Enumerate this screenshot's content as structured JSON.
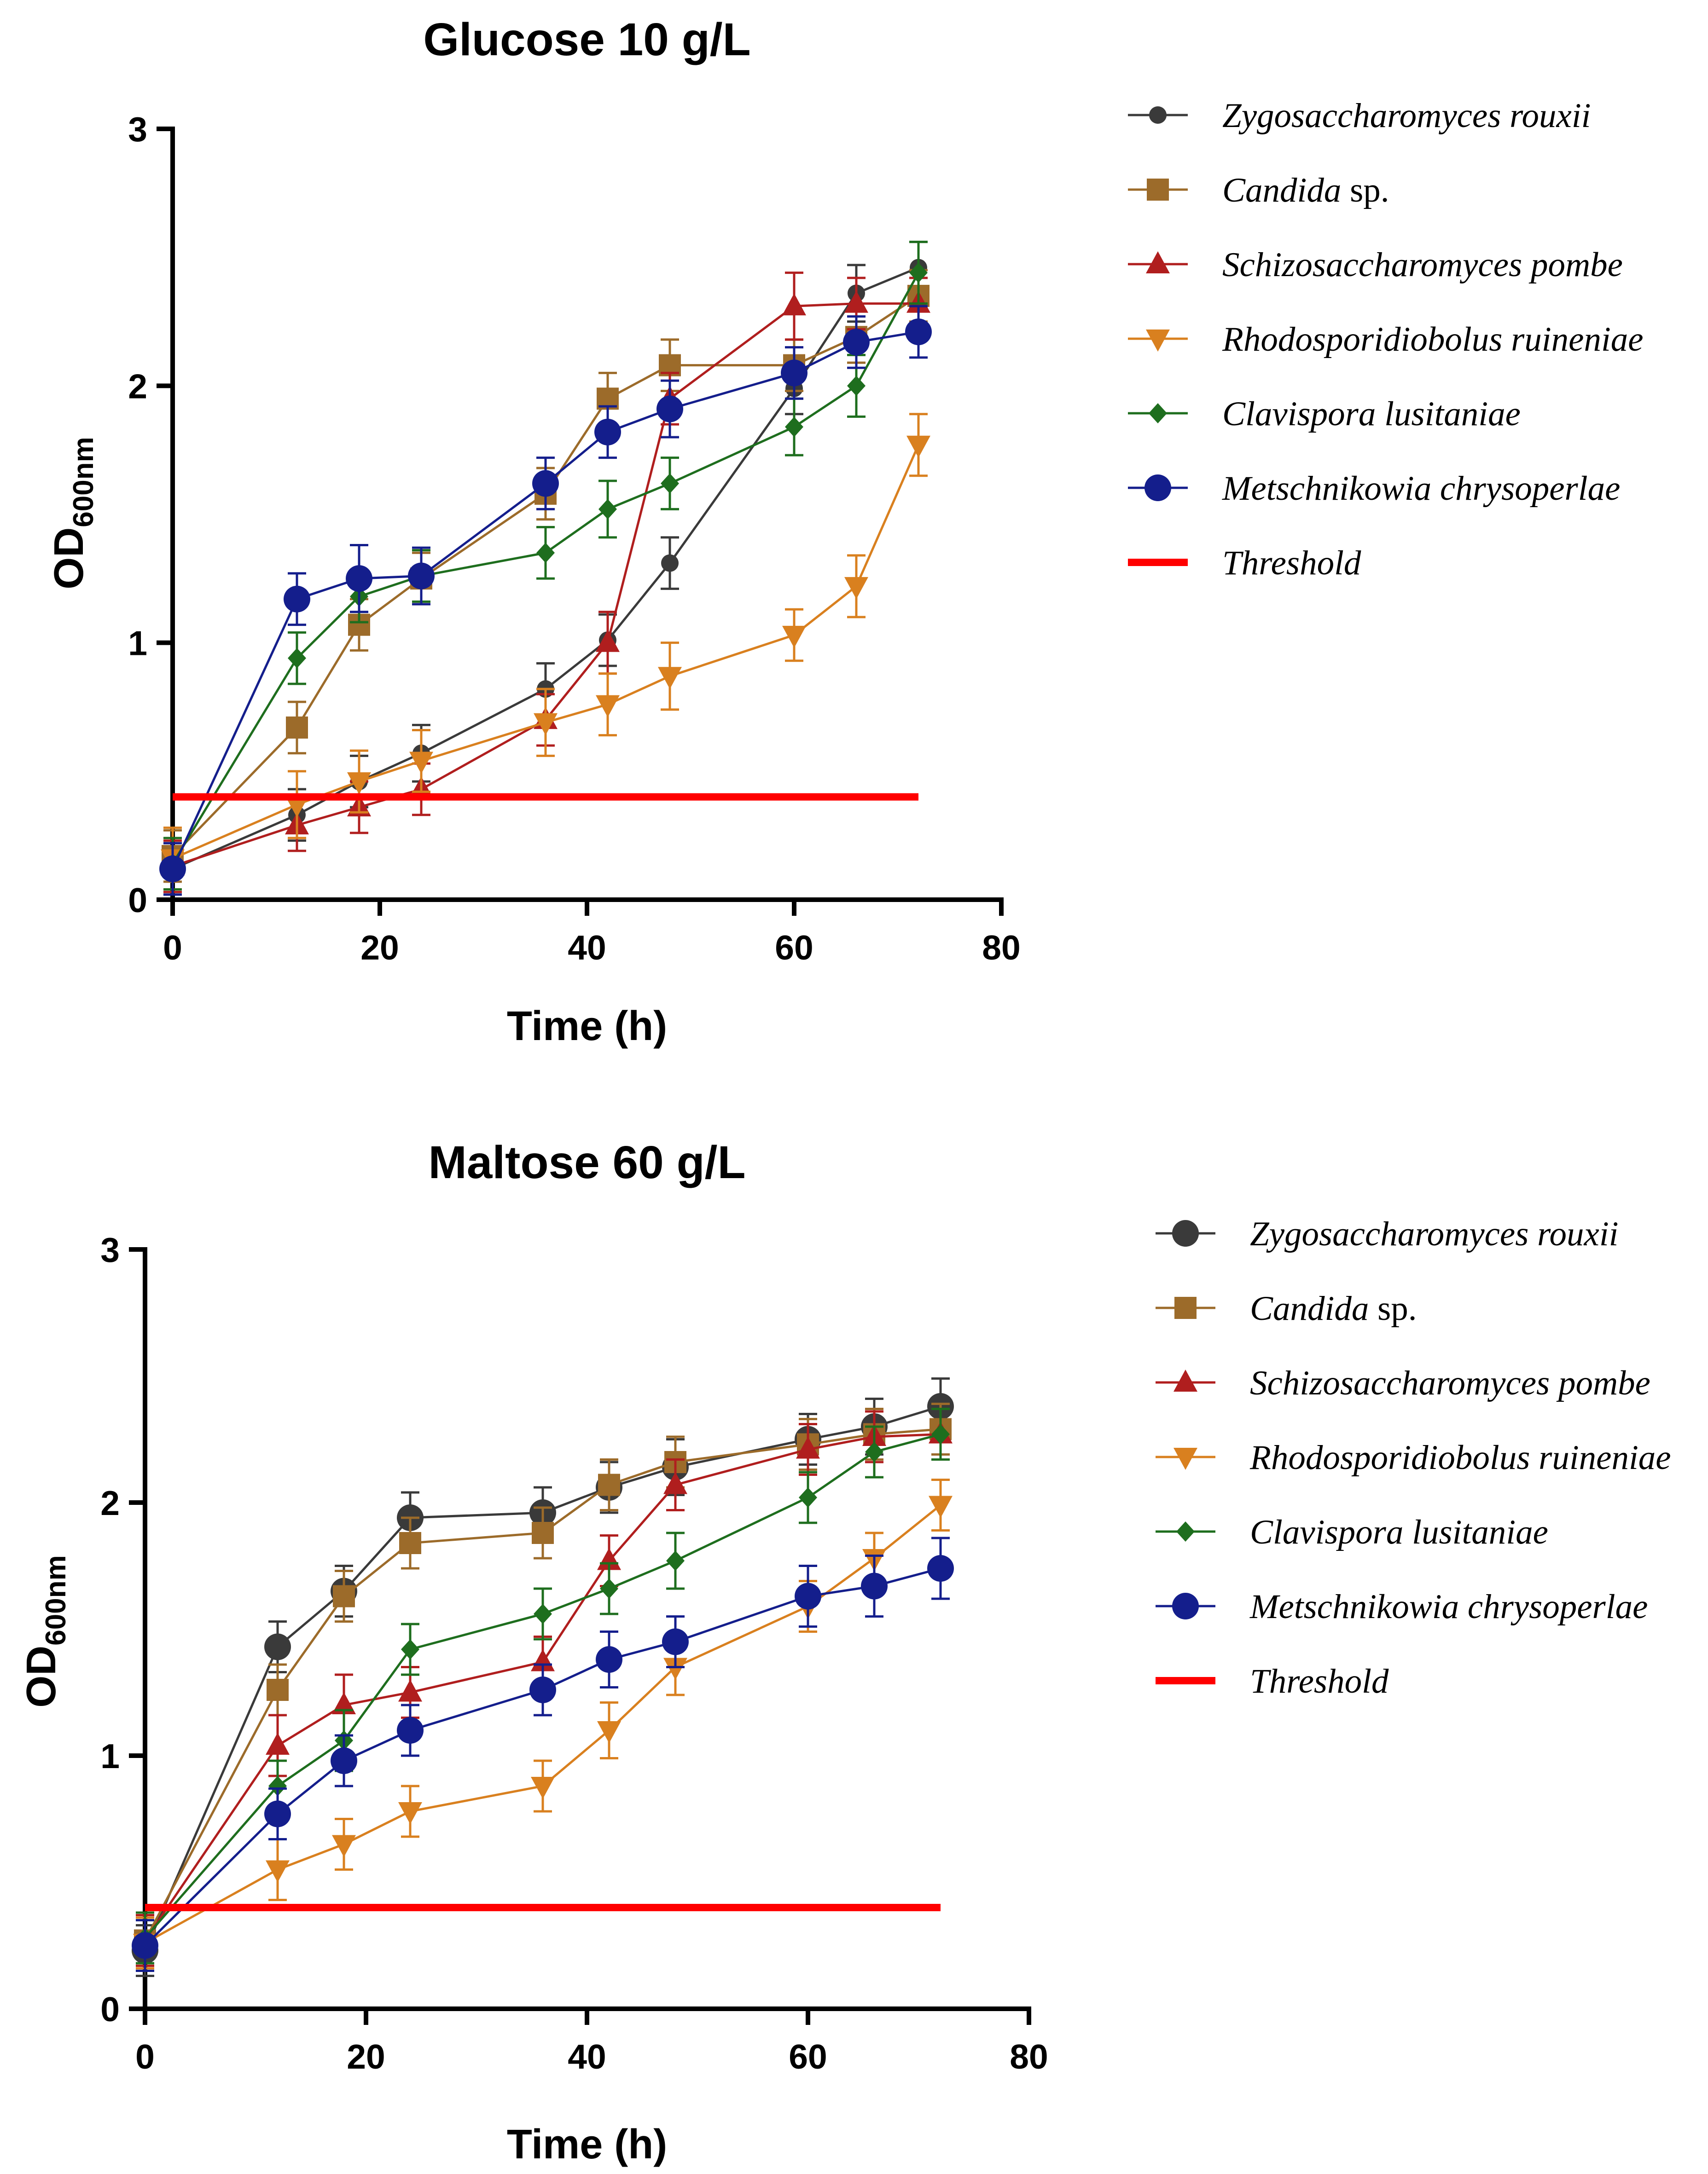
{
  "chart_data": [
    {
      "type": "line",
      "title": "Glucose 10 g/L",
      "xlabel": "Time (h)",
      "ylabel_main": "OD",
      "ylabel_sub": "600nm",
      "xlim": [
        0,
        80
      ],
      "ylim": [
        0,
        3
      ],
      "xticks": [
        "0",
        "20",
        "40",
        "60",
        "80"
      ],
      "yticks": [
        "0",
        "1",
        "2",
        "3"
      ],
      "grid": false,
      "legend_position": "right",
      "x": [
        0,
        12,
        18,
        24,
        36,
        42,
        48,
        60,
        66,
        72
      ],
      "series": [
        {
          "name": "Zygosaccharomyces rouxii",
          "italic": "Zygosaccharomyces rouxii",
          "plain": "",
          "color": "#3a3a3a",
          "marker": "circle-small",
          "values": [
            0.12,
            0.33,
            0.46,
            0.57,
            0.82,
            1.01,
            1.31,
            1.99,
            2.36,
            2.46
          ],
          "errors": [
            0.1,
            0.1,
            0.1,
            0.11,
            0.1,
            0.1,
            0.1,
            0.1,
            0.11,
            0.1
          ]
        },
        {
          "name": "Candida sp.",
          "italic": "Candida",
          "plain": " sp.",
          "color": "#9c6b2a",
          "marker": "square",
          "values": [
            0.17,
            0.67,
            1.07,
            1.25,
            1.58,
            1.95,
            2.08,
            2.08,
            2.19,
            2.35
          ],
          "errors": [
            0.1,
            0.1,
            0.1,
            0.1,
            0.1,
            0.1,
            0.1,
            0.1,
            0.1,
            0.1
          ]
        },
        {
          "name": "Schizosaccharomyces pombe",
          "italic": "Schizosaccharomyces pombe",
          "plain": "",
          "color": "#b01e1e",
          "marker": "triangle-up",
          "values": [
            0.13,
            0.29,
            0.36,
            0.43,
            0.7,
            1.0,
            1.95,
            2.31,
            2.32,
            2.32
          ],
          "errors": [
            0.1,
            0.1,
            0.1,
            0.1,
            0.1,
            0.12,
            0.1,
            0.13,
            0.1,
            0.1
          ]
        },
        {
          "name": "Rhodosporidiobolus ruineniae",
          "italic": "Rhodosporidiobolus ruineniae",
          "plain": "",
          "color": "#d9801f",
          "marker": "triangle-down",
          "values": [
            0.16,
            0.37,
            0.46,
            0.54,
            0.69,
            0.76,
            0.87,
            1.03,
            1.22,
            1.77
          ],
          "errors": [
            0.12,
            0.13,
            0.12,
            0.12,
            0.13,
            0.12,
            0.13,
            0.1,
            0.12,
            0.12
          ]
        },
        {
          "name": "Clavispora lusitaniae",
          "italic": "Clavispora lusitaniae",
          "plain": "",
          "color": "#1e6e1e",
          "marker": "diamond",
          "values": [
            0.14,
            0.94,
            1.18,
            1.26,
            1.35,
            1.52,
            1.62,
            1.84,
            2.0,
            2.44
          ],
          "errors": [
            0.1,
            0.1,
            0.1,
            0.1,
            0.1,
            0.11,
            0.1,
            0.11,
            0.12,
            0.12
          ]
        },
        {
          "name": "Metschnikowia chrysoperlae",
          "italic": "Metschnikowia chrysoperlae",
          "plain": "",
          "color": "#141e8c",
          "marker": "circle-large",
          "values": [
            0.12,
            1.17,
            1.25,
            1.26,
            1.62,
            1.82,
            1.91,
            2.05,
            2.17,
            2.21
          ],
          "errors": [
            0.1,
            0.1,
            0.13,
            0.11,
            0.1,
            0.1,
            0.11,
            0.1,
            0.1,
            0.1
          ]
        }
      ],
      "threshold": {
        "name": "Threshold",
        "value": 0.4,
        "x_start": 0,
        "x_end": 72,
        "color": "#ff0000"
      }
    },
    {
      "type": "line",
      "title": "Maltose 60 g/L",
      "xlabel": "Time (h)",
      "ylabel_main": "OD",
      "ylabel_sub": "600nm",
      "xlim": [
        0,
        80
      ],
      "ylim": [
        0,
        3
      ],
      "xticks": [
        "0",
        "20",
        "40",
        "60",
        "80"
      ],
      "yticks": [
        "0",
        "1",
        "2",
        "3"
      ],
      "grid": false,
      "legend_position": "right",
      "x": [
        0,
        12,
        18,
        24,
        36,
        42,
        48,
        60,
        66,
        72
      ],
      "series": [
        {
          "name": "Zygosaccharomyces rouxii",
          "italic": "Zygosaccharomyces rouxii",
          "plain": "",
          "color": "#3a3a3a",
          "marker": "circle-large",
          "values": [
            0.23,
            1.43,
            1.65,
            1.94,
            1.96,
            2.06,
            2.14,
            2.25,
            2.3,
            2.38
          ],
          "errors": [
            0.1,
            0.1,
            0.1,
            0.1,
            0.1,
            0.1,
            0.11,
            0.1,
            0.11,
            0.11
          ]
        },
        {
          "name": "Candida sp.",
          "italic": "Candida",
          "plain": " sp.",
          "color": "#9c6b2a",
          "marker": "square",
          "values": [
            0.27,
            1.26,
            1.63,
            1.84,
            1.88,
            2.07,
            2.16,
            2.23,
            2.27,
            2.29
          ],
          "errors": [
            0.1,
            0.1,
            0.1,
            0.1,
            0.1,
            0.1,
            0.1,
            0.1,
            0.1,
            0.1
          ]
        },
        {
          "name": "Schizosaccharomyces pombe",
          "italic": "Schizosaccharomyces pombe",
          "plain": "",
          "color": "#b01e1e",
          "marker": "triangle-up",
          "values": [
            0.27,
            1.04,
            1.2,
            1.25,
            1.37,
            1.77,
            2.07,
            2.21,
            2.26,
            2.27
          ],
          "errors": [
            0.1,
            0.12,
            0.12,
            0.1,
            0.1,
            0.1,
            0.1,
            0.1,
            0.1,
            0.1
          ]
        },
        {
          "name": "Rhodosporidiobolus ruineniae",
          "italic": "Rhodosporidiobolus ruineniae",
          "plain": "",
          "color": "#d9801f",
          "marker": "triangle-down",
          "values": [
            0.26,
            0.55,
            0.65,
            0.78,
            0.88,
            1.1,
            1.35,
            1.59,
            1.78,
            1.99
          ],
          "errors": [
            0.1,
            0.12,
            0.1,
            0.1,
            0.1,
            0.11,
            0.11,
            0.1,
            0.1,
            0.1
          ]
        },
        {
          "name": "Clavispora lusitaniae",
          "italic": "Clavispora lusitaniae",
          "plain": "",
          "color": "#1e6e1e",
          "marker": "diamond",
          "values": [
            0.28,
            0.88,
            1.06,
            1.42,
            1.56,
            1.66,
            1.77,
            2.02,
            2.2,
            2.27
          ],
          "errors": [
            0.1,
            0.1,
            0.12,
            0.1,
            0.1,
            0.1,
            0.11,
            0.1,
            0.1,
            0.1
          ]
        },
        {
          "name": "Metschnikowia chrysoperlae",
          "italic": "Metschnikowia chrysoperlae",
          "plain": "",
          "color": "#141e8c",
          "marker": "circle-large",
          "values": [
            0.25,
            0.77,
            0.98,
            1.1,
            1.26,
            1.38,
            1.45,
            1.63,
            1.67,
            1.74
          ],
          "errors": [
            0.1,
            0.1,
            0.1,
            0.1,
            0.1,
            0.11,
            0.1,
            0.12,
            0.12,
            0.12
          ]
        }
      ],
      "threshold": {
        "name": "Threshold",
        "value": 0.4,
        "x_start": 0,
        "x_end": 72,
        "color": "#ff0000"
      }
    }
  ]
}
